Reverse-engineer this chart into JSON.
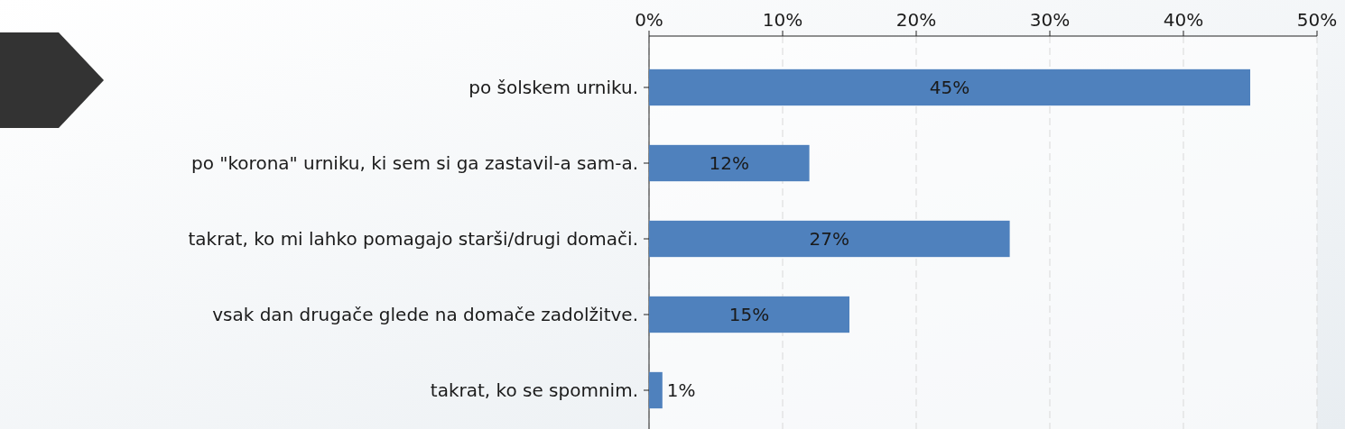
{
  "chart_data": {
    "type": "bar",
    "orientation": "horizontal",
    "categories": [
      "po šolskem urniku.",
      "po \"korona\" urniku, ki sem si ga zastavil-a sam-a.",
      "takrat, ko mi lahko pomagajo starši/drugi domači.",
      "vsak dan drugače glede na domače zadolžitve.",
      "takrat, ko se spomnim."
    ],
    "values": [
      45,
      12,
      27,
      15,
      1
    ],
    "color": "#4f81bd",
    "xlim": [
      0,
      50
    ],
    "xticks": [
      {
        "value": 0,
        "label": "0%"
      },
      {
        "value": 10,
        "label": "10%"
      },
      {
        "value": 20,
        "label": "20%"
      },
      {
        "value": 30,
        "label": "30%"
      },
      {
        "value": 40,
        "label": "40%"
      },
      {
        "value": 50,
        "label": "50%"
      }
    ],
    "value_labels": [
      "45%",
      "12%",
      "27%",
      "15%",
      "1%"
    ],
    "grid": "x"
  }
}
